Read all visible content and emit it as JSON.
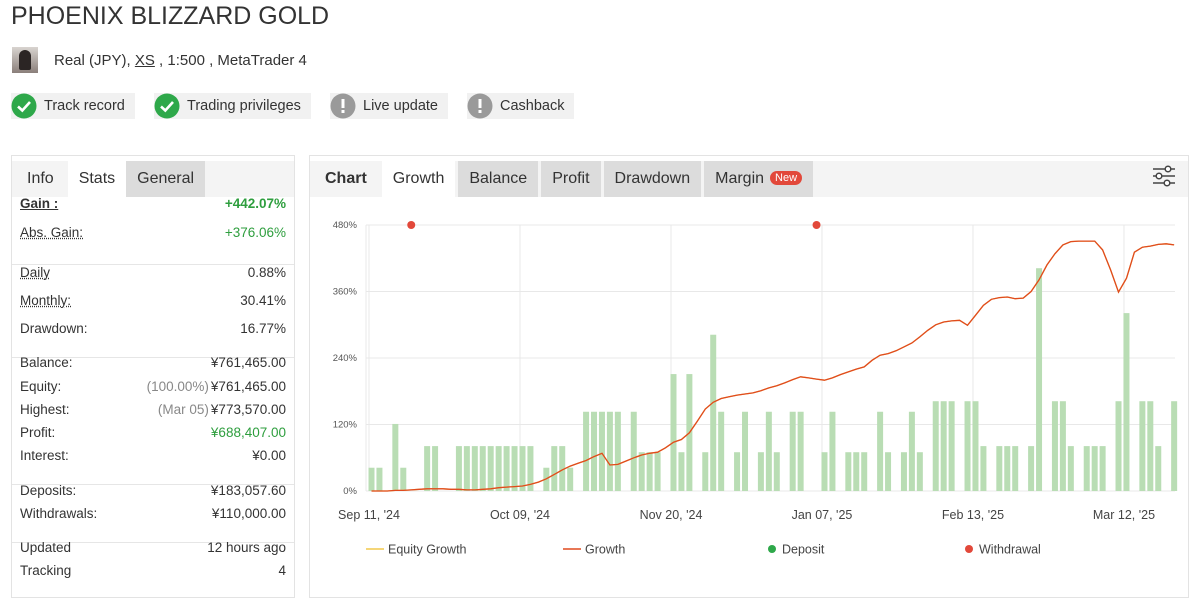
{
  "header": {
    "title": "PHOENIX BLIZZARD GOLD",
    "account_type": "Real (JPY),",
    "server": "XS",
    "account_details": ", 1:500 , MetaTrader 4"
  },
  "badges": [
    {
      "label": "Track record",
      "verified": true
    },
    {
      "label": "Trading privileges",
      "verified": true
    },
    {
      "label": "Live update",
      "verified": false
    },
    {
      "label": "Cashback",
      "verified": false
    }
  ],
  "info_panel": {
    "tabs": [
      "Info",
      "Stats",
      "General"
    ],
    "active_tab": 1,
    "groups": [
      [
        {
          "label": "Gain :",
          "value": "+442.07%",
          "bold": true,
          "underline": true,
          "color": "#2e9e3e"
        },
        {
          "label": "Abs. Gain:",
          "value": "+376.06%",
          "underline": true,
          "color": "#2e9e3e"
        }
      ],
      [
        {
          "label": "Daily",
          "value": "0.88%",
          "underline": true
        },
        {
          "label": "Monthly:",
          "value": "30.41%",
          "underline": true
        },
        {
          "label": "Drawdown:",
          "value": "16.77%"
        }
      ],
      [
        {
          "label": "Balance:",
          "value": "¥761,465.00"
        },
        {
          "label": "Equity:",
          "note": "(100.00%)",
          "value": "¥761,465.00"
        },
        {
          "label": "Highest:",
          "note": "(Mar 05)",
          "value": "¥773,570.00"
        },
        {
          "label": "Profit:",
          "value": "¥688,407.00",
          "color": "#2e9e3e"
        },
        {
          "label": "Interest:",
          "value": "¥0.00"
        }
      ],
      [
        {
          "label": "Deposits:",
          "value": "¥183,057.60"
        },
        {
          "label": "Withdrawals:",
          "value": "¥110,000.00"
        }
      ],
      [
        {
          "label": "Updated",
          "value": "12 hours ago"
        },
        {
          "label": "Tracking",
          "value": "4"
        }
      ]
    ]
  },
  "chart_panel": {
    "heading": "Chart",
    "tabs": [
      "Growth",
      "Balance",
      "Profit",
      "Drawdown",
      "Margin"
    ],
    "active_tab": 0,
    "new_badge": "New"
  },
  "chart_data": {
    "type": "combo",
    "categories": [
      "Sep 11, '24",
      null,
      null,
      null,
      null,
      null,
      null,
      null,
      null,
      null,
      null,
      null,
      null,
      null,
      null,
      null,
      null,
      null,
      null,
      "Oct 09, '24",
      null,
      null,
      null,
      null,
      null,
      null,
      null,
      null,
      null,
      null,
      null,
      null,
      null,
      null,
      null,
      null,
      null,
      null,
      "Nov 20, '24",
      null,
      null,
      null,
      null,
      null,
      null,
      null,
      null,
      null,
      null,
      null,
      null,
      null,
      null,
      null,
      null,
      null,
      null,
      "Jan 07, '25",
      null,
      null,
      null,
      null,
      null,
      null,
      null,
      null,
      null,
      null,
      null,
      null,
      null,
      null,
      null,
      null,
      null,
      null,
      "Feb 13, '25",
      null,
      null,
      null,
      null,
      null,
      null,
      null,
      null,
      null,
      null,
      null,
      null,
      null,
      null,
      null,
      null,
      null,
      null,
      "Mar 12, '25",
      null,
      null,
      null,
      null,
      null,
      null
    ],
    "ylim": [
      0,
      480
    ],
    "yticks": [
      {
        "value": 0,
        "label": "0%"
      },
      {
        "value": 120,
        "label": "120%"
      },
      {
        "value": 240,
        "label": "240%"
      },
      {
        "value": 360,
        "label": "360%"
      },
      {
        "value": 480,
        "label": "480%"
      }
    ],
    "grid": true,
    "bars": {
      "color": "#b9ddb4",
      "values": [
        42,
        42,
        null,
        121,
        42,
        null,
        null,
        81,
        81,
        null,
        null,
        81,
        81,
        81,
        81,
        81,
        81,
        81,
        81,
        81,
        81,
        null,
        42,
        81,
        81,
        42,
        null,
        143,
        143,
        143,
        143,
        143,
        null,
        143,
        70,
        70,
        70,
        null,
        211,
        70,
        211,
        null,
        70,
        282,
        143,
        null,
        70,
        143,
        null,
        70,
        143,
        70,
        null,
        143,
        143,
        null,
        null,
        70,
        143,
        null,
        70,
        70,
        70,
        null,
        143,
        70,
        null,
        70,
        143,
        70,
        null,
        162,
        162,
        162,
        null,
        162,
        162,
        81,
        null,
        81,
        81,
        81,
        null,
        81,
        402,
        null,
        162,
        162,
        81,
        null,
        81,
        81,
        81,
        null,
        162,
        321,
        null,
        162,
        162,
        81,
        null,
        162
      ]
    },
    "series": [
      {
        "name": "Equity Growth",
        "color": "#f2c94c",
        "kind": "line",
        "values": [
          0,
          0,
          0,
          1,
          1,
          2,
          3,
          4,
          4,
          4,
          3,
          3,
          2,
          2,
          3,
          4,
          6,
          7,
          8,
          9,
          12,
          16,
          22,
          30,
          38,
          45,
          50,
          55,
          62,
          68,
          47,
          48,
          54,
          60,
          65,
          68,
          70,
          78,
          88,
          93,
          105,
          126,
          148,
          160,
          167,
          170,
          173,
          175,
          177,
          181,
          186,
          190,
          195,
          201,
          206,
          204,
          202,
          200,
          204,
          210,
          215,
          220,
          224,
          236,
          245,
          248,
          253,
          260,
          267,
          278,
          290,
          300,
          305,
          307,
          308,
          299,
          317,
          335,
          346,
          349,
          350,
          347,
          348,
          360,
          381,
          408,
          428,
          444,
          450,
          451,
          451,
          451,
          435,
          399,
          359,
          384,
          431,
          440,
          442,
          445,
          446,
          444
        ]
      },
      {
        "name": "Growth",
        "color": "#e04a1f",
        "kind": "line",
        "values": [
          0,
          0,
          0,
          1,
          1,
          2,
          3,
          4,
          4,
          4,
          3,
          3,
          2,
          2,
          3,
          4,
          6,
          7,
          8,
          9,
          12,
          16,
          22,
          30,
          38,
          45,
          50,
          55,
          62,
          68,
          47,
          48,
          54,
          60,
          65,
          68,
          70,
          78,
          88,
          93,
          105,
          126,
          148,
          160,
          167,
          170,
          173,
          175,
          177,
          181,
          186,
          190,
          195,
          201,
          206,
          204,
          202,
          200,
          204,
          210,
          215,
          220,
          224,
          236,
          245,
          248,
          253,
          260,
          267,
          278,
          290,
          300,
          305,
          307,
          308,
          299,
          317,
          335,
          346,
          349,
          350,
          347,
          348,
          360,
          381,
          408,
          428,
          444,
          450,
          451,
          451,
          451,
          435,
          399,
          359,
          384,
          431,
          440,
          442,
          445,
          446,
          444
        ]
      },
      {
        "name": "Deposit",
        "color": "#2ea84a",
        "kind": "marker",
        "values": [
          null,
          null,
          null,
          null,
          null,
          null,
          null,
          null,
          null,
          null,
          null,
          null,
          null,
          null,
          null,
          null,
          null,
          null,
          null,
          null,
          null,
          null,
          null,
          null,
          null,
          null,
          null,
          null,
          null,
          null,
          null,
          null,
          null,
          null,
          null,
          null,
          null,
          null,
          null,
          null,
          null,
          null,
          null,
          null,
          null,
          null,
          null,
          null,
          null,
          null,
          null,
          null,
          null,
          null,
          null,
          null,
          null,
          null,
          null,
          null,
          null,
          null,
          null,
          null,
          null,
          null,
          null,
          null,
          null,
          null,
          null,
          null,
          null,
          null,
          null,
          null,
          null,
          null,
          null,
          null,
          null,
          null,
          null,
          null,
          null,
          null,
          null,
          null,
          null,
          null,
          null,
          null,
          null,
          null,
          null,
          null,
          null,
          null,
          null,
          null,
          null,
          null
        ]
      },
      {
        "name": "Withdrawal",
        "color": "#e2483a",
        "kind": "marker",
        "values": [
          null,
          null,
          null,
          null,
          null,
          480,
          null,
          null,
          null,
          null,
          null,
          null,
          null,
          null,
          null,
          null,
          null,
          null,
          null,
          null,
          null,
          null,
          null,
          null,
          null,
          null,
          null,
          null,
          null,
          null,
          null,
          null,
          null,
          null,
          null,
          null,
          null,
          null,
          null,
          null,
          null,
          null,
          null,
          null,
          null,
          null,
          null,
          null,
          null,
          null,
          null,
          null,
          null,
          null,
          null,
          null,
          480,
          null,
          null,
          null,
          null,
          null,
          null,
          null,
          null,
          null,
          null,
          null,
          null,
          null,
          null,
          null,
          null,
          null,
          null,
          null,
          null,
          null,
          null,
          null,
          null,
          null,
          null,
          null,
          null,
          null,
          null,
          null,
          null,
          null,
          null,
          null,
          null,
          null,
          null,
          null,
          null,
          null,
          null,
          null,
          null,
          null
        ]
      }
    ]
  }
}
